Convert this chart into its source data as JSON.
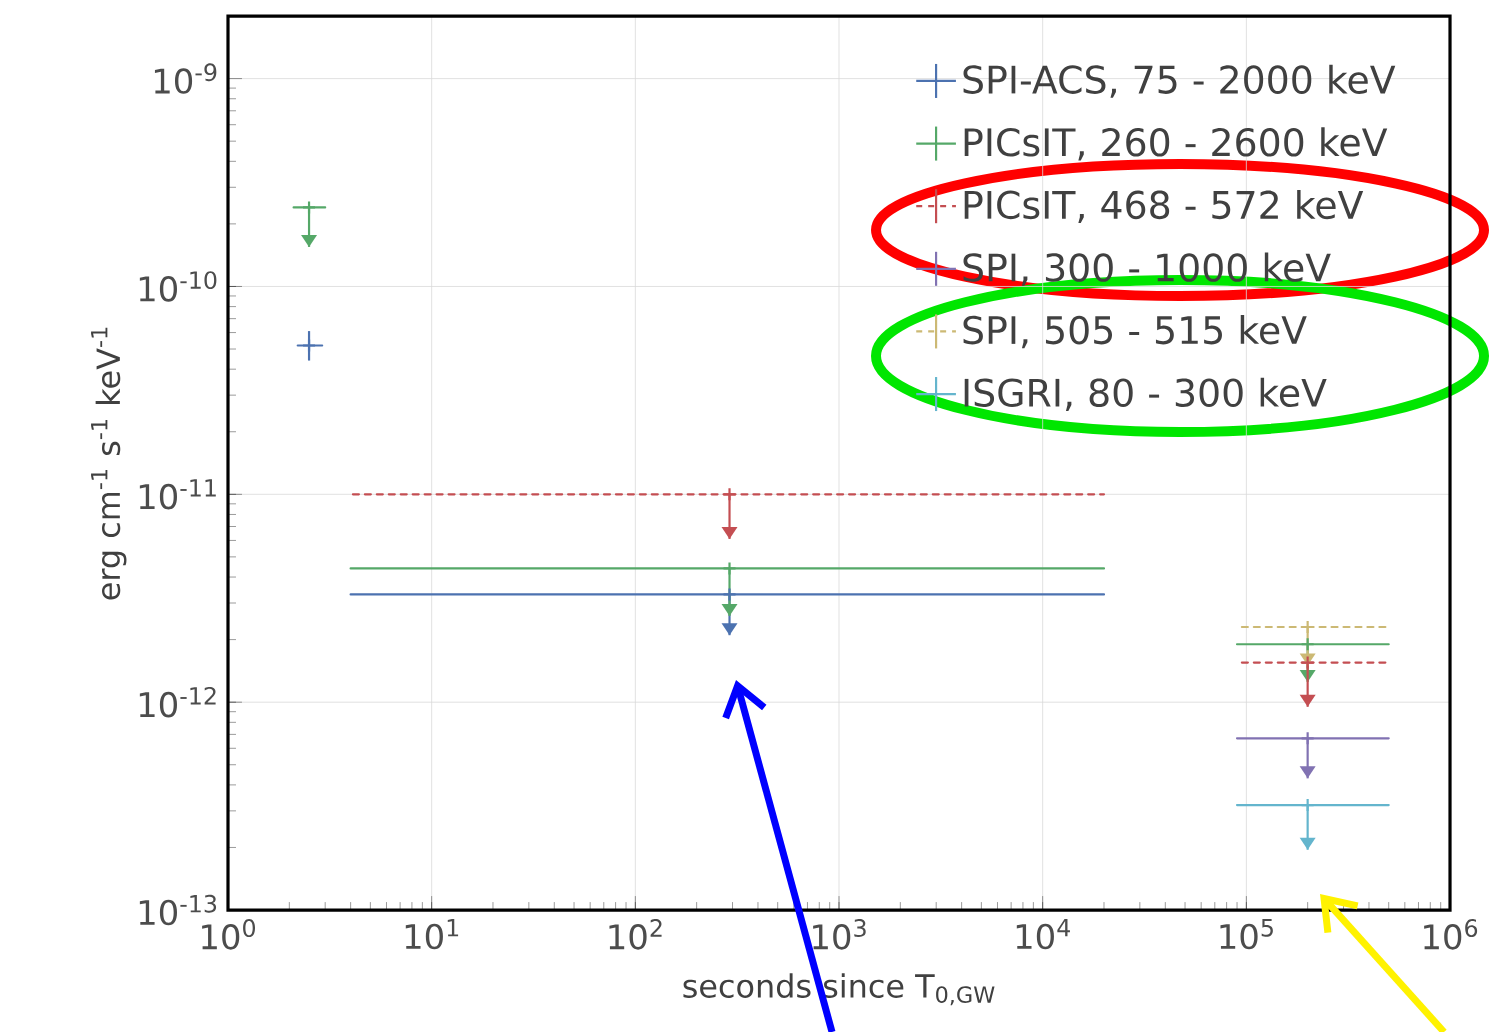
{
  "chart_data": {
    "type": "scatter",
    "xlabel": "seconds since T$_{0,GW}$",
    "ylabel": "erg cm$^{-1}$ s$^{-1}$ keV$^{-1}$",
    "log": "xy",
    "grid": true,
    "legend": "top right",
    "marker": "cross",
    "xlim": [
      1,
      1000000
    ],
    "ylim": [
      1e-13,
      2e-09
    ],
    "xticks": [
      {
        "value": 1,
        "label": "10$^{0}$"
      },
      {
        "value": 10,
        "label": "10$^{1}$"
      },
      {
        "value": 100,
        "label": "10$^{2}$"
      },
      {
        "value": 1000,
        "label": "10$^{3}$"
      },
      {
        "value": 10000,
        "label": "10$^{4}$"
      },
      {
        "value": 100000,
        "label": "10$^{5}$"
      },
      {
        "value": 1000000,
        "label": "10$^{6}$"
      }
    ],
    "yticks": [
      {
        "value": 1e-13,
        "label": "10$^{-13}$"
      },
      {
        "value": 1e-12,
        "label": "10$^{-12}$"
      },
      {
        "value": 1e-11,
        "label": "10$^{-11}$"
      },
      {
        "value": 1e-10,
        "label": "10$^{-10}$"
      },
      {
        "value": 1e-09,
        "label": "10$^{-9}$"
      }
    ],
    "series": [
      {
        "name": "SPI-ACS, 75 - 2000 keV",
        "color": "#4c72b0",
        "line_style": "solid",
        "x": [
          2.5,
          290
        ],
        "values": [
          5.2e-11,
          3.3e-12
        ],
        "xerrors": [
          [
            2.2,
            2.9
          ],
          [
            4,
            20000
          ]
        ],
        "errors": [
          [
            4.4e-11,
            6.1e-11
          ],
          [
            2.1e-12,
            3.3e-12
          ]
        ]
      },
      {
        "name": "PICsIT, 260 - 2600 keV",
        "color": "#55a868",
        "line_style": "solid",
        "x": [
          2.5,
          290,
          200000
        ],
        "values": [
          2.4e-10,
          4.4e-12,
          1.9e-12
        ],
        "xerrors": [
          [
            2.1,
            3.0
          ],
          [
            4,
            20000
          ],
          [
            90000,
            500000
          ]
        ],
        "errors": [
          [
            1.55e-10,
            2.4e-10
          ],
          [
            2.6e-12,
            4.4e-12
          ],
          [
            1.25e-12,
            1.9e-12
          ]
        ]
      },
      {
        "name": "PICsIT, 468 - 572 keV",
        "color": "#c44e52",
        "line_style": "dashed",
        "x": [
          290,
          200000
        ],
        "values": [
          1e-11,
          1.55e-12
        ],
        "xerrors": [
          [
            4,
            20000
          ],
          [
            90000,
            500000
          ]
        ],
        "errors": [
          [
            6.1e-12,
            1e-11
          ],
          [
            9.5e-13,
            1.55e-12
          ]
        ]
      },
      {
        "name": "SPI, 300 - 1000 keV",
        "color": "#8172b2",
        "line_style": "solid",
        "x": [
          200000
        ],
        "values": [
          6.7e-13
        ],
        "xerrors": [
          [
            90000,
            500000
          ]
        ],
        "errors": [
          [
            4.3e-13,
            6.7e-13
          ]
        ]
      },
      {
        "name": "SPI, 505 - 515 keV",
        "color": "#ccb974",
        "line_style": "dashed",
        "x": [
          200000
        ],
        "values": [
          2.3e-12
        ],
        "xerrors": [
          [
            90000,
            500000
          ]
        ],
        "errors": [
          [
            1.5e-12,
            2.3e-12
          ]
        ]
      },
      {
        "name": "ISGRI, 80 - 300 keV",
        "color": "#64b5cd",
        "line_style": "solid",
        "x": [
          200000
        ],
        "values": [
          3.2e-13
        ],
        "xerrors": [
          [
            90000,
            500000
          ]
        ],
        "errors": [
          [
            1.95e-13,
            3.2e-13
          ]
        ]
      }
    ]
  }
}
